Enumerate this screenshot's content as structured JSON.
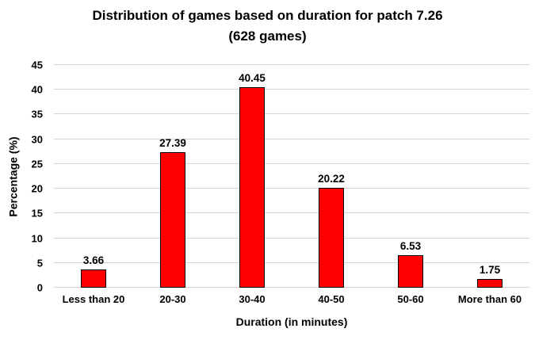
{
  "title": {
    "line1": "Distribution of games based on duration for patch 7.26",
    "line2": "(628 games)"
  },
  "chart_data": {
    "type": "bar",
    "title": "Distribution of games based on duration for patch 7.26 (628 games)",
    "categories": [
      "Less than 20",
      "20-30",
      "30-40",
      "40-50",
      "50-60",
      "More than 60"
    ],
    "values": [
      3.66,
      27.39,
      40.45,
      20.22,
      6.53,
      1.75
    ],
    "data_labels": [
      "3.66",
      "27.39",
      "40.45",
      "20.22",
      "6.53",
      "1.75"
    ],
    "xlabel": "Duration (in minutes)",
    "ylabel": "Percentage (%)",
    "ylim": [
      0,
      45
    ],
    "yticks": [
      0,
      5,
      10,
      15,
      20,
      25,
      30,
      35,
      40,
      45
    ],
    "grid": true,
    "legend": "none",
    "colors": {
      "bar_fill": "#FF0000",
      "bar_border": "#000000",
      "gridline": "#D6D6D6",
      "text": "#000000",
      "background": "#FFFFFF"
    }
  }
}
